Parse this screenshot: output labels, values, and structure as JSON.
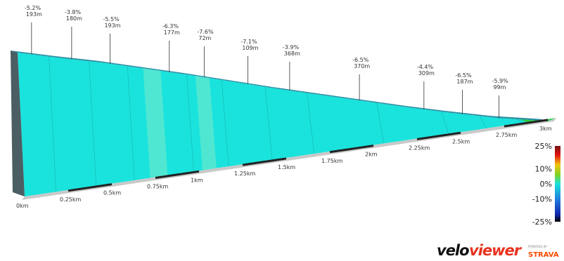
{
  "chart_data": {
    "type": "area",
    "title": "",
    "distance_unit": "km",
    "elevation_profile": {
      "x": [
        0,
        0.25,
        0.5,
        0.75,
        1.0,
        1.25,
        1.5,
        1.75,
        2.0,
        2.25,
        2.5,
        2.75,
        3.0,
        3.05
      ],
      "y": [
        100,
        92,
        85,
        76,
        67,
        57,
        47,
        38,
        29,
        20,
        12,
        5,
        1,
        0
      ]
    },
    "segment_markers": [
      {
        "grade": "-5.2%",
        "length": "193m",
        "km": 0.08
      },
      {
        "grade": "-3.8%",
        "length": "180m",
        "km": 0.31
      },
      {
        "grade": "-5.5%",
        "length": "193m",
        "km": 0.53
      },
      {
        "grade": "-6.3%",
        "length": "177m",
        "km": 0.87
      },
      {
        "grade": "-7.6%",
        "length": "72m",
        "km": 1.07
      },
      {
        "grade": "-7.1%",
        "length": "109m",
        "km": 1.32
      },
      {
        "grade": "-3.9%",
        "length": "368m",
        "km": 1.56
      },
      {
        "grade": "-6.5%",
        "length": "370m",
        "km": 1.96
      },
      {
        "grade": "-4.4%",
        "length": "309m",
        "km": 2.33
      },
      {
        "grade": "-6.5%",
        "length": "187m",
        "km": 2.55
      },
      {
        "grade": "-5.9%",
        "length": "99m",
        "km": 2.76
      }
    ],
    "km_ticks": [
      "0km",
      "0.25km",
      "0.5km",
      "0.75km",
      "1km",
      "1.25km",
      "1.5km",
      "1.75km",
      "2km",
      "2.25km",
      "2.5km",
      "2.75km",
      "3km"
    ],
    "km_values": [
      0,
      0.25,
      0.5,
      0.75,
      1,
      1.25,
      1.5,
      1.75,
      2,
      2.25,
      2.5,
      2.75,
      3
    ],
    "grade_scale": {
      "labels": [
        "25%",
        "10%",
        "0%",
        "-10%",
        "-25%"
      ],
      "values": [
        25,
        10,
        0,
        -10,
        -25
      ]
    },
    "colors": {
      "main_fill": "#19e3dc",
      "highlight_fill": "#5ae8d0",
      "top_fill": "#2b8fa3",
      "base_fill": "#c9c9c9",
      "end_fill": "#2ecc40",
      "tick_bar": "#222222"
    }
  },
  "branding": {
    "logo_text_a": "velo",
    "logo_text_b": "viewer",
    "powered_by": "POWERED BY",
    "partner": "STRAVA"
  }
}
